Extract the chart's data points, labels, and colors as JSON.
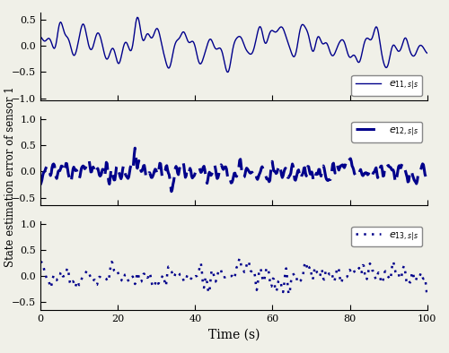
{
  "ylabel": "State estimation error of sensor 1",
  "xlabel": "Time (s)",
  "xlim": [
    0,
    100
  ],
  "color": "#00008B",
  "bg_color": "#f0f0e8",
  "subplot1": {
    "ylim": [
      -1.05,
      0.65
    ],
    "yticks": [
      -1,
      -0.5,
      0,
      0.5
    ],
    "legend": "$e_{11,s|s}$",
    "legend_loc": "lower right",
    "linestyle": "solid",
    "linewidth": 1.0,
    "sigma": 4,
    "seed": 10,
    "scale": 0.55
  },
  "subplot2": {
    "ylim": [
      -0.65,
      1.05
    ],
    "yticks": [
      -0.5,
      0,
      0.5,
      1
    ],
    "legend": "$e_{12,s|s}$",
    "legend_loc": "upper right",
    "linestyle": "dashed",
    "linewidth": 2.2,
    "sigma": 1.2,
    "seed": 55,
    "scale": 0.45
  },
  "subplot3": {
    "ylim": [
      -0.65,
      1.05
    ],
    "yticks": [
      -0.5,
      0,
      0.5,
      1
    ],
    "legend": "$e_{13,s|s}$",
    "legend_loc": "upper right",
    "linestyle": "dotted",
    "linewidth": 1.8,
    "sigma": 1.5,
    "seed": 88,
    "scale": 0.4
  }
}
